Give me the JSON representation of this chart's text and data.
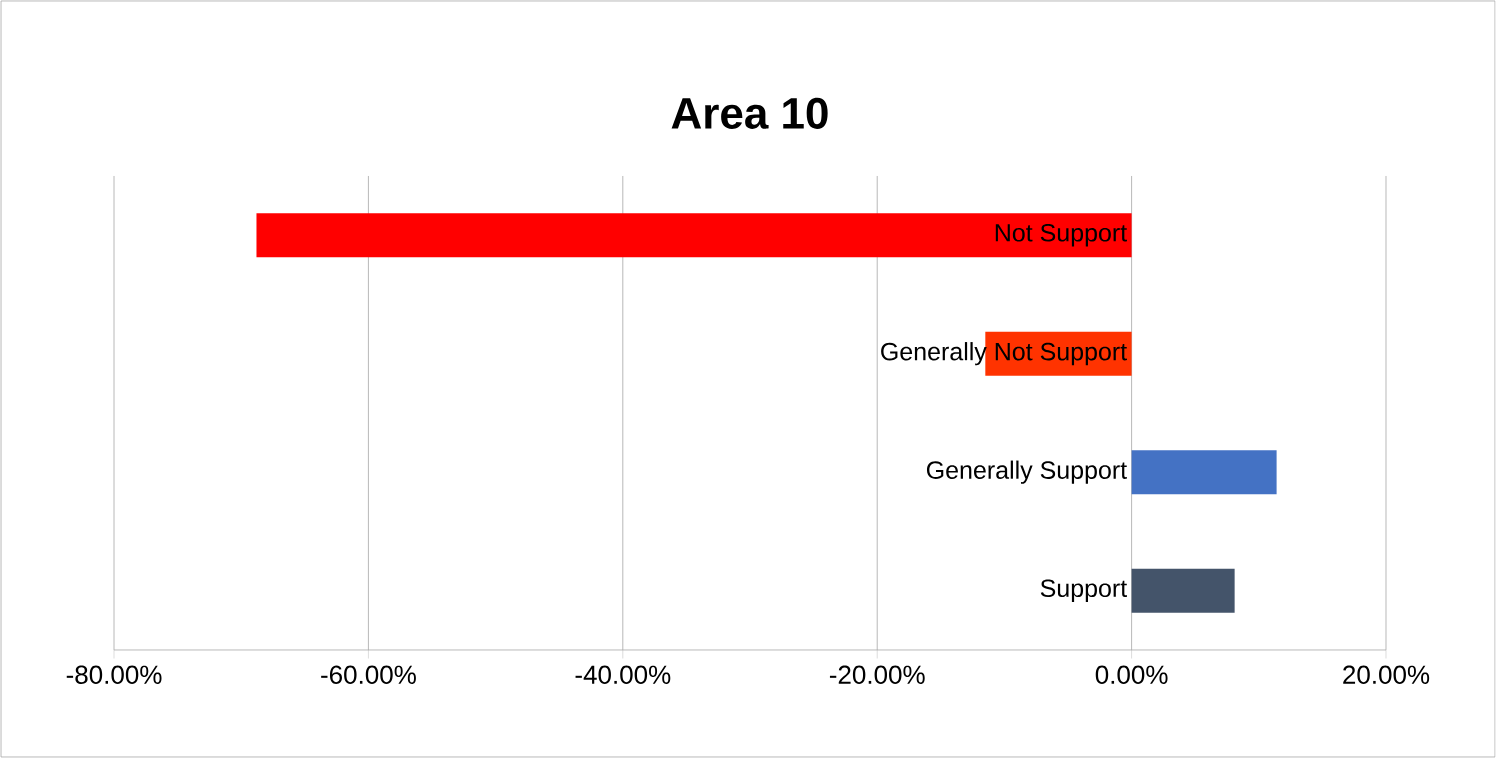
{
  "chart_data": {
    "type": "bar",
    "orientation": "horizontal",
    "title": "Area 10",
    "categories": [
      "Not Support",
      "Generally Not Support",
      "Generally Support",
      "Support"
    ],
    "values": [
      -68.8,
      -11.5,
      11.4,
      8.1
    ],
    "colors": [
      "#ff0000",
      "#ff3300",
      "#4472c4",
      "#44546a"
    ],
    "xlim": [
      -80,
      20
    ],
    "xticks": [
      {
        "value": -80,
        "label": "-80.00%"
      },
      {
        "value": -60,
        "label": "-60.00%"
      },
      {
        "value": -40,
        "label": "-40.00%"
      },
      {
        "value": -20,
        "label": "-20.00%"
      },
      {
        "value": 0,
        "label": "0.00%"
      },
      {
        "value": 20,
        "label": "20.00%"
      }
    ],
    "grid": "x"
  }
}
